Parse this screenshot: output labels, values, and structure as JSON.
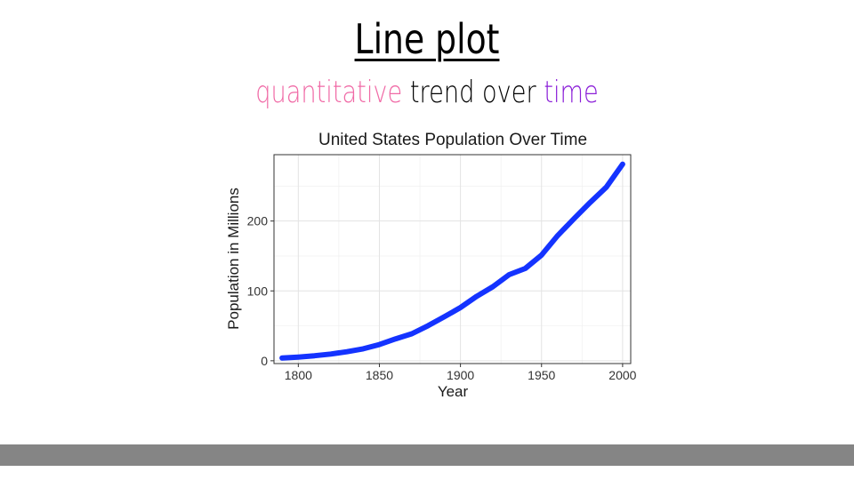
{
  "slide": {
    "title": "Line plot",
    "subtitle": [
      {
        "text": "quantitative",
        "color": "#f06aa6"
      },
      {
        "text": " trend over ",
        "color": "#000000"
      },
      {
        "text": "time",
        "color": "#8b1fd8"
      }
    ]
  },
  "chart_data": {
    "type": "line",
    "title": "United States Population Over Time",
    "xlabel": "Year",
    "ylabel": "Population in Millions",
    "xlim": [
      1785,
      2005
    ],
    "ylim": [
      -4,
      295
    ],
    "xticks": [
      1800,
      1850,
      1900,
      1950,
      2000
    ],
    "yticks": [
      0,
      100,
      200
    ],
    "grid": true,
    "line_color": "#1433ff",
    "series": [
      {
        "x": [
          1790,
          1800,
          1810,
          1820,
          1830,
          1840,
          1850,
          1860,
          1870,
          1880,
          1890,
          1900,
          1910,
          1920,
          1930,
          1940,
          1950,
          1960,
          1970,
          1980,
          1990,
          2000
        ],
        "values": [
          3.9,
          5.3,
          7.2,
          9.6,
          12.9,
          17.1,
          23.2,
          31.4,
          38.6,
          50.2,
          62.9,
          76.2,
          92.2,
          106.0,
          123.2,
          132.2,
          151.3,
          179.3,
          203.3,
          226.5,
          248.7,
          281.4
        ]
      }
    ]
  }
}
